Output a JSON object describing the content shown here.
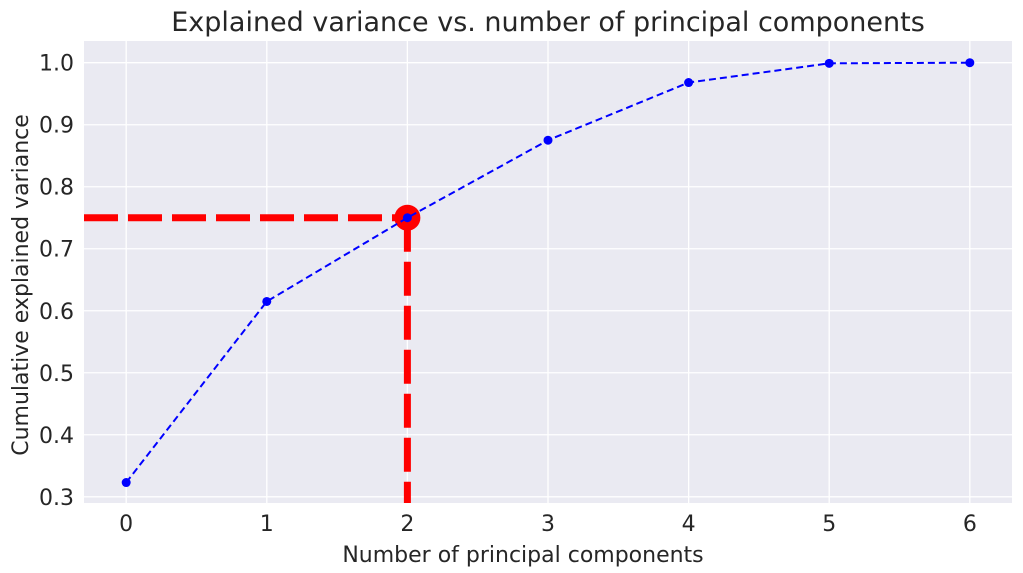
{
  "chart_data": {
    "type": "line",
    "title": "Explained variance vs. number of principal components",
    "xlabel": "Number of principal components",
    "ylabel": "Cumulative explained variance",
    "xlim": [
      -0.3,
      6.3
    ],
    "ylim": [
      0.29,
      1.035
    ],
    "xticks": [
      "0",
      "1",
      "2",
      "3",
      "4",
      "5",
      "6"
    ],
    "yticks": [
      "0.3",
      "0.4",
      "0.5",
      "0.6",
      "0.7",
      "0.8",
      "0.9",
      "1.0"
    ],
    "grid": true,
    "series": [
      {
        "x": [
          0,
          1,
          2,
          3,
          4,
          5,
          6
        ],
        "y": [
          0.323,
          0.615,
          0.75,
          0.875,
          0.968,
          0.999,
          1.0
        ],
        "color": "#0000ff",
        "style": "dashed",
        "marker": "circle"
      }
    ],
    "highlight": {
      "x": 2,
      "y": 0.75,
      "color": "#ff0000",
      "style": "dashed"
    }
  },
  "colors": {
    "plot_background": "#eaeaf2",
    "grid": "#ffffff",
    "line": "#0000ff",
    "highlight": "#ff0000"
  }
}
